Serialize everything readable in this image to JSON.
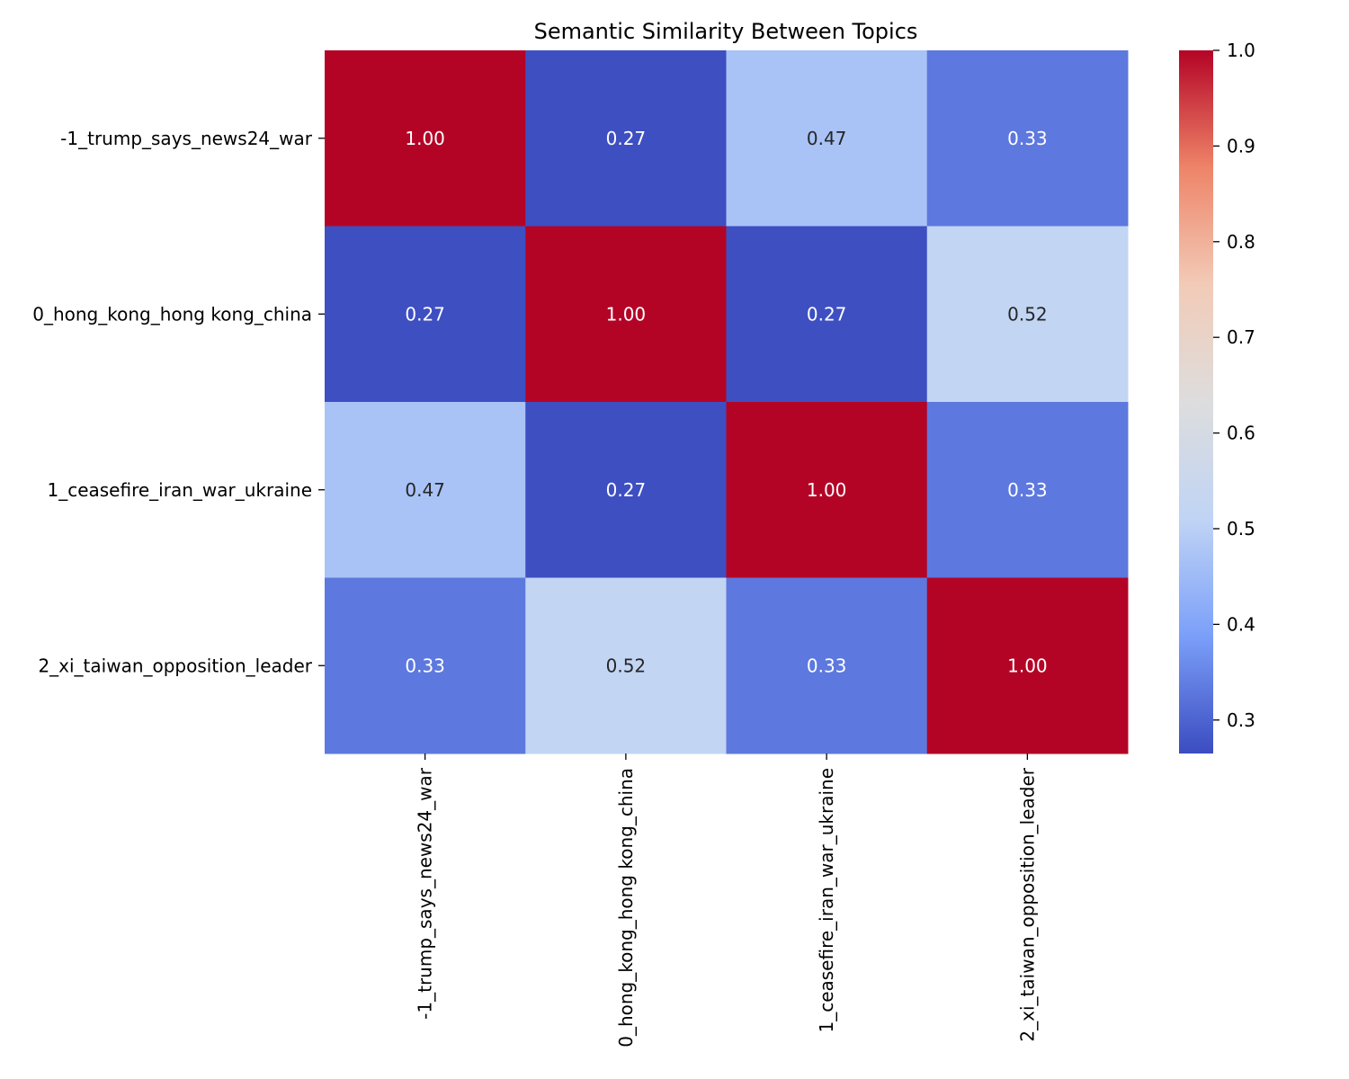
{
  "chart_data": {
    "type": "heatmap",
    "title": "Semantic Similarity Between Topics",
    "xlabel": "",
    "ylabel": "",
    "row_labels": [
      "-1_trump_says_news24_war",
      "0_hong_kong_hong kong_china",
      "1_ceasefire_iran_war_ukraine",
      "2_xi_taiwan_opposition_leader"
    ],
    "col_labels": [
      "-1_trump_says_news24_war",
      "0_hong_kong_hong kong_china",
      "1_ceasefire_iran_war_ukraine",
      "2_xi_taiwan_opposition_leader"
    ],
    "values": [
      [
        1.0,
        0.27,
        0.47,
        0.33
      ],
      [
        0.27,
        1.0,
        0.27,
        0.52
      ],
      [
        0.47,
        0.27,
        1.0,
        0.33
      ],
      [
        0.33,
        0.52,
        0.33,
        1.0
      ]
    ],
    "cell_labels": [
      [
        "1.00",
        "0.27",
        "0.47",
        "0.33"
      ],
      [
        "0.27",
        "1.00",
        "0.27",
        "0.52"
      ],
      [
        "0.47",
        "0.27",
        "1.00",
        "0.33"
      ],
      [
        "0.33",
        "0.52",
        "0.33",
        "1.00"
      ]
    ],
    "colormap": "coolwarm",
    "colormap_stops": [
      "#3b4cc0",
      "#7b9ff9",
      "#c0d4f5",
      "#dddddd",
      "#f2cbb7",
      "#ee8468",
      "#b40426"
    ],
    "color_range": [
      0.265,
      1.0
    ],
    "colorbar": {
      "ticks": [
        0.3,
        0.4,
        0.5,
        0.6,
        0.7,
        0.8,
        0.9,
        1.0
      ],
      "tick_labels": [
        "0.3",
        "0.4",
        "0.5",
        "0.6",
        "0.7",
        "0.8",
        "0.9",
        "1.0"
      ],
      "placement": "right"
    },
    "grid": false
  }
}
